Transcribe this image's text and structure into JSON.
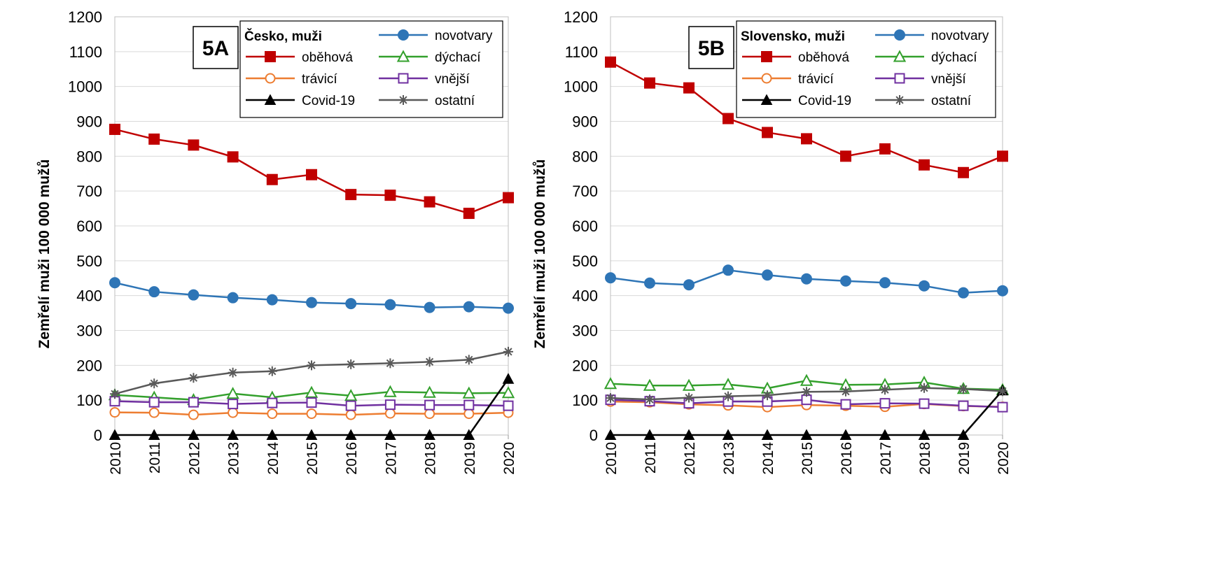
{
  "chart_data": [
    {
      "type": "line",
      "panel_label": "5A",
      "legend_title": "Česko, muži",
      "ylabel": "Zemřelí muži 100 000 mužů",
      "xlabel": "",
      "x": [
        "2010",
        "2011",
        "2012",
        "2013",
        "2014",
        "2015",
        "2016",
        "2017",
        "2018",
        "2019",
        "2020"
      ],
      "yticks": [
        "0",
        "100",
        "200",
        "300",
        "400",
        "500",
        "600",
        "700",
        "800",
        "900",
        "1000",
        "1100",
        "1200"
      ],
      "ylim": [
        0,
        1200
      ],
      "grid": "horizontal",
      "legend_position": "top-right",
      "series": [
        {
          "name": "novotvary",
          "color": "#2e75b6",
          "marker": "circle-filled",
          "values": [
            437,
            411,
            402,
            394,
            388,
            380,
            377,
            374,
            366,
            368,
            364
          ]
        },
        {
          "name": "oběhová",
          "color": "#c00000",
          "marker": "square-filled",
          "values": [
            877,
            849,
            832,
            798,
            733,
            747,
            690,
            688,
            669,
            636,
            681
          ]
        },
        {
          "name": "dýchací",
          "color": "#33a02c",
          "marker": "triangle-open",
          "values": [
            115,
            108,
            101,
            119,
            108,
            122,
            113,
            124,
            122,
            120,
            121
          ]
        },
        {
          "name": "trávicí",
          "color": "#ed7d31",
          "marker": "circle-open",
          "values": [
            65,
            64,
            58,
            64,
            61,
            61,
            58,
            62,
            61,
            61,
            64
          ]
        },
        {
          "name": "vnější",
          "color": "#7030a0",
          "marker": "square-open",
          "values": [
            97,
            94,
            94,
            89,
            92,
            93,
            84,
            87,
            86,
            86,
            84
          ]
        },
        {
          "name": "Covid-19",
          "color": "#000000",
          "marker": "triangle-filled",
          "values": [
            0,
            0,
            0,
            0,
            0,
            0,
            0,
            0,
            0,
            0,
            161
          ]
        },
        {
          "name": "ostatní",
          "color": "#595959",
          "marker": "star",
          "values": [
            118,
            148,
            164,
            179,
            183,
            200,
            203,
            206,
            210,
            216,
            239
          ]
        }
      ]
    },
    {
      "type": "line",
      "panel_label": "5B",
      "legend_title": "Slovensko, muži",
      "ylabel": "Zemřelí muži 100 000 mužů",
      "xlabel": "",
      "x": [
        "2010",
        "2011",
        "2012",
        "2013",
        "2014",
        "2015",
        "2016",
        "2017",
        "2018",
        "2019",
        "2020"
      ],
      "yticks": [
        "0",
        "100",
        "200",
        "300",
        "400",
        "500",
        "600",
        "700",
        "800",
        "900",
        "1000",
        "1100",
        "1200"
      ],
      "ylim": [
        0,
        1200
      ],
      "grid": "horizontal",
      "legend_position": "top-right",
      "series": [
        {
          "name": "novotvary",
          "color": "#2e75b6",
          "marker": "circle-filled",
          "values": [
            451,
            436,
            431,
            473,
            459,
            448,
            442,
            437,
            428,
            408,
            414
          ]
        },
        {
          "name": "oběhová",
          "color": "#c00000",
          "marker": "square-filled",
          "values": [
            1070,
            1010,
            996,
            908,
            868,
            850,
            800,
            821,
            775,
            753,
            800
          ]
        },
        {
          "name": "dýchací",
          "color": "#33a02c",
          "marker": "triangle-open",
          "values": [
            147,
            142,
            142,
            145,
            134,
            156,
            144,
            145,
            151,
            133,
            130
          ]
        },
        {
          "name": "trávicí",
          "color": "#ed7d31",
          "marker": "circle-open",
          "values": [
            96,
            94,
            88,
            85,
            80,
            86,
            84,
            81,
            89,
            83,
            81
          ]
        },
        {
          "name": "vnější",
          "color": "#7030a0",
          "marker": "square-open",
          "values": [
            101,
            97,
            91,
            96,
            96,
            101,
            88,
            91,
            90,
            84,
            80
          ]
        },
        {
          "name": "Covid-19",
          "color": "#000000",
          "marker": "triangle-filled",
          "values": [
            0,
            0,
            0,
            0,
            0,
            0,
            0,
            0,
            0,
            0,
            128
          ]
        },
        {
          "name": "ostatní",
          "color": "#595959",
          "marker": "star",
          "values": [
            106,
            102,
            107,
            111,
            114,
            124,
            125,
            130,
            135,
            132,
            126
          ]
        }
      ]
    }
  ]
}
